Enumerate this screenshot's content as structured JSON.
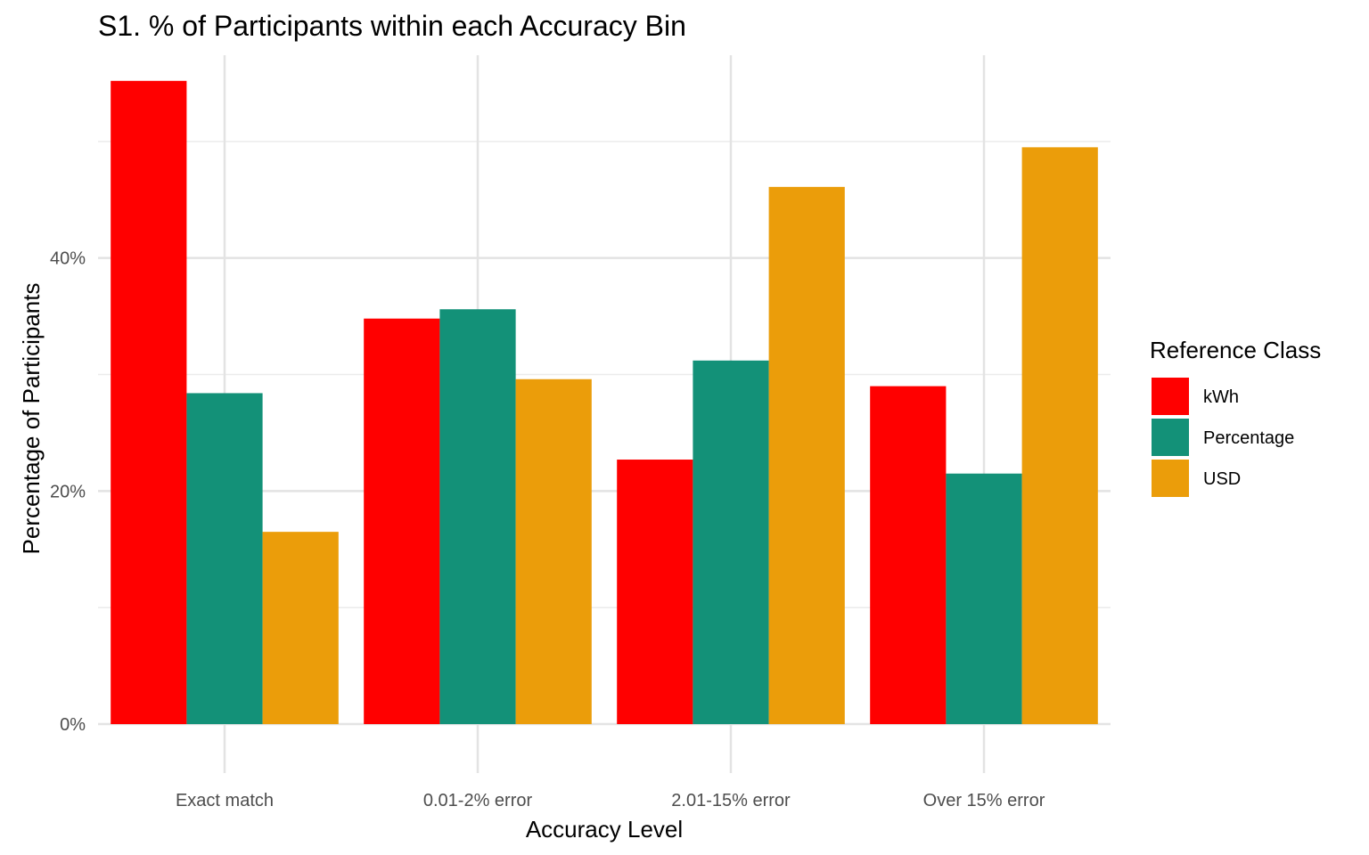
{
  "chart_data": {
    "type": "bar",
    "title": "S1. % of Participants within each Accuracy Bin",
    "xlabel": "Accuracy Level",
    "ylabel": "Percentage of Participants",
    "categories": [
      "Exact match",
      "0.01-2% error",
      "2.01-15% error",
      "Over 15% error"
    ],
    "y_ticks": [
      0,
      20,
      40
    ],
    "y_tick_labels": [
      "0%",
      "20%",
      "40%"
    ],
    "y_minor_ticks": [
      10,
      30,
      50
    ],
    "ylim": [
      -4.2,
      57.4
    ],
    "grid": true,
    "legend": {
      "title": "Reference Class",
      "placement": "right"
    },
    "series": [
      {
        "name": "kWh",
        "color": "#ff0000",
        "values": [
          55.2,
          34.8,
          22.7,
          29.0
        ]
      },
      {
        "name": "Percentage",
        "color": "#139178",
        "values": [
          28.4,
          35.6,
          31.2,
          21.5
        ]
      },
      {
        "name": "USD",
        "color": "#eb9d0a",
        "values": [
          16.5,
          29.6,
          46.1,
          49.5
        ]
      }
    ]
  }
}
